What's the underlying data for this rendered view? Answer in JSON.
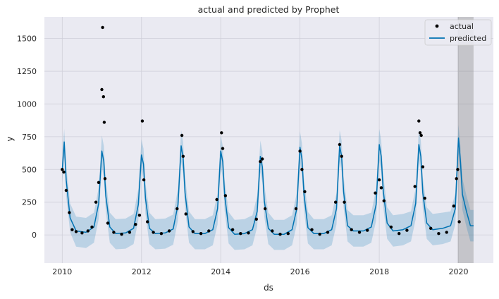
{
  "chart_data": {
    "type": "line",
    "title": "actual and predicted by Prophet",
    "xlabel": "ds",
    "ylabel": "y",
    "xlim": [
      2009.55,
      2020.88
    ],
    "ylim": [
      -215,
      1665
    ],
    "xticks": [
      2010,
      2012,
      2014,
      2016,
      2018,
      2020
    ],
    "yticks": [
      0,
      250,
      500,
      750,
      1000,
      1250,
      1500
    ],
    "grid": true,
    "legend": {
      "position": "top-right",
      "entries": [
        "actual",
        "predicted"
      ]
    },
    "forecast_window": {
      "x_start": 2019.98,
      "x_end": 2020.38
    },
    "series": [
      {
        "name": "actual",
        "marker": "dot",
        "x": [
          2010.0,
          2010.04,
          2010.1,
          2010.18,
          2010.25,
          2010.35,
          2010.5,
          2010.65,
          2010.75,
          2010.85,
          2010.92,
          2011.0,
          2011.02,
          2011.04,
          2011.06,
          2011.08,
          2011.15,
          2011.3,
          2011.5,
          2011.7,
          2011.85,
          2011.95,
          2012.02,
          2012.06,
          2012.15,
          2012.3,
          2012.5,
          2012.7,
          2012.9,
          2013.02,
          2013.05,
          2013.12,
          2013.3,
          2013.5,
          2013.7,
          2013.9,
          2014.02,
          2014.05,
          2014.12,
          2014.3,
          2014.5,
          2014.7,
          2014.9,
          2015.0,
          2015.05,
          2015.12,
          2015.3,
          2015.5,
          2015.7,
          2015.9,
          2016.0,
          2016.05,
          2016.12,
          2016.3,
          2016.5,
          2016.7,
          2016.9,
          2017.0,
          2017.05,
          2017.12,
          2017.3,
          2017.5,
          2017.7,
          2017.9,
          2018.0,
          2018.05,
          2018.12,
          2018.3,
          2018.5,
          2018.7,
          2018.9,
          2019.0,
          2019.03,
          2019.06,
          2019.1,
          2019.15,
          2019.3,
          2019.5,
          2019.7,
          2019.88,
          2019.95,
          2019.98,
          2020.02
        ],
        "y": [
          500,
          480,
          340,
          170,
          40,
          25,
          15,
          30,
          60,
          250,
          400,
          1110,
          1585,
          1055,
          860,
          430,
          90,
          20,
          5,
          20,
          80,
          150,
          870,
          420,
          100,
          20,
          10,
          30,
          200,
          760,
          600,
          160,
          25,
          10,
          30,
          270,
          780,
          660,
          300,
          40,
          10,
          15,
          120,
          560,
          580,
          200,
          30,
          5,
          10,
          200,
          640,
          500,
          330,
          40,
          5,
          20,
          250,
          690,
          600,
          250,
          40,
          20,
          35,
          320,
          420,
          360,
          260,
          60,
          10,
          35,
          370,
          870,
          780,
          760,
          520,
          280,
          50,
          10,
          20,
          220,
          430,
          500,
          100
        ]
      },
      {
        "name": "predicted",
        "x": [
          2010.0,
          2010.05,
          2010.1,
          2010.2,
          2010.35,
          2010.6,
          2010.8,
          2010.92,
          2011.0,
          2011.05,
          2011.1,
          2011.2,
          2011.35,
          2011.6,
          2011.8,
          2011.92,
          2012.0,
          2012.05,
          2012.1,
          2012.2,
          2012.35,
          2012.6,
          2012.8,
          2012.92,
          2013.0,
          2013.05,
          2013.1,
          2013.2,
          2013.35,
          2013.6,
          2013.8,
          2013.92,
          2014.0,
          2014.05,
          2014.1,
          2014.2,
          2014.35,
          2014.6,
          2014.8,
          2014.92,
          2015.0,
          2015.05,
          2015.1,
          2015.2,
          2015.35,
          2015.6,
          2015.8,
          2015.92,
          2016.0,
          2016.05,
          2016.1,
          2016.2,
          2016.35,
          2016.6,
          2016.8,
          2016.92,
          2017.0,
          2017.05,
          2017.1,
          2017.2,
          2017.35,
          2017.6,
          2017.8,
          2017.92,
          2018.0,
          2018.05,
          2018.1,
          2018.2,
          2018.35,
          2018.6,
          2018.8,
          2018.92,
          2019.0,
          2019.05,
          2019.1,
          2019.2,
          2019.35,
          2019.6,
          2019.8,
          2019.92,
          2020.0,
          2020.05,
          2020.1,
          2020.2,
          2020.3,
          2020.38
        ],
        "y": [
          490,
          710,
          420,
          130,
          30,
          20,
          60,
          240,
          640,
          560,
          300,
          60,
          10,
          15,
          50,
          230,
          610,
          540,
          280,
          50,
          10,
          15,
          45,
          230,
          680,
          590,
          320,
          60,
          10,
          10,
          40,
          200,
          640,
          560,
          300,
          55,
          5,
          10,
          40,
          180,
          600,
          520,
          260,
          50,
          5,
          5,
          40,
          200,
          670,
          580,
          310,
          55,
          10,
          10,
          40,
          200,
          680,
          600,
          330,
          70,
          30,
          30,
          60,
          230,
          690,
          600,
          340,
          90,
          30,
          40,
          70,
          240,
          690,
          600,
          320,
          90,
          40,
          50,
          70,
          200,
          740,
          560,
          310,
          180,
          70,
          70
        ]
      }
    ],
    "confidence_band": {
      "x": [
        2010.0,
        2010.05,
        2010.1,
        2010.2,
        2010.35,
        2010.6,
        2010.8,
        2010.92,
        2011.0,
        2011.05,
        2011.1,
        2011.2,
        2011.35,
        2011.6,
        2011.8,
        2011.92,
        2012.0,
        2012.05,
        2012.1,
        2012.2,
        2012.35,
        2012.6,
        2012.8,
        2012.92,
        2013.0,
        2013.05,
        2013.1,
        2013.2,
        2013.35,
        2013.6,
        2013.8,
        2013.92,
        2014.0,
        2014.05,
        2014.1,
        2014.2,
        2014.35,
        2014.6,
        2014.8,
        2014.92,
        2015.0,
        2015.05,
        2015.1,
        2015.2,
        2015.35,
        2015.6,
        2015.8,
        2015.92,
        2016.0,
        2016.05,
        2016.1,
        2016.2,
        2016.35,
        2016.6,
        2016.8,
        2016.92,
        2017.0,
        2017.05,
        2017.1,
        2017.2,
        2017.35,
        2017.6,
        2017.8,
        2017.92,
        2018.0,
        2018.05,
        2018.1,
        2018.2,
        2018.35,
        2018.6,
        2018.8,
        2018.92,
        2019.0,
        2019.05,
        2019.1,
        2019.2,
        2019.35,
        2019.6,
        2019.8,
        2019.92,
        2020.0,
        2020.05,
        2020.1,
        2020.2,
        2020.3,
        2020.38
      ],
      "lower": [
        400,
        590,
        300,
        20,
        -90,
        -100,
        -60,
        120,
        520,
        440,
        180,
        -60,
        -110,
        -105,
        -70,
        110,
        490,
        420,
        160,
        -70,
        -110,
        -105,
        -75,
        110,
        560,
        470,
        200,
        -60,
        -110,
        -110,
        -80,
        80,
        520,
        440,
        180,
        -65,
        -115,
        -110,
        -80,
        60,
        480,
        400,
        140,
        -70,
        -115,
        -115,
        -80,
        80,
        550,
        460,
        190,
        -65,
        -110,
        -110,
        -80,
        80,
        560,
        480,
        210,
        -50,
        -90,
        -90,
        -60,
        110,
        570,
        480,
        220,
        -30,
        -90,
        -80,
        -50,
        120,
        570,
        480,
        200,
        -30,
        -80,
        -70,
        -50,
        80,
        620,
        440,
        190,
        60,
        -50,
        -50
      ],
      "upper": [
        590,
        810,
        530,
        240,
        140,
        130,
        170,
        360,
        760,
        680,
        420,
        170,
        120,
        125,
        160,
        350,
        730,
        660,
        400,
        170,
        120,
        125,
        155,
        350,
        800,
        710,
        440,
        180,
        120,
        120,
        150,
        320,
        760,
        680,
        420,
        175,
        115,
        120,
        150,
        300,
        720,
        640,
        380,
        170,
        115,
        115,
        150,
        320,
        790,
        700,
        430,
        175,
        120,
        120,
        150,
        320,
        800,
        720,
        450,
        190,
        150,
        150,
        170,
        350,
        810,
        720,
        460,
        210,
        150,
        160,
        180,
        360,
        810,
        720,
        440,
        210,
        160,
        170,
        180,
        320,
        840,
        680,
        430,
        300,
        190,
        190
      ]
    },
    "colors": {
      "actual": "#000000",
      "predicted": "#0072B2",
      "band": "#0072B2",
      "forecast_window": "#808080",
      "plot_bg": "#EAEAF2",
      "grid": "#CFCFD9"
    }
  }
}
